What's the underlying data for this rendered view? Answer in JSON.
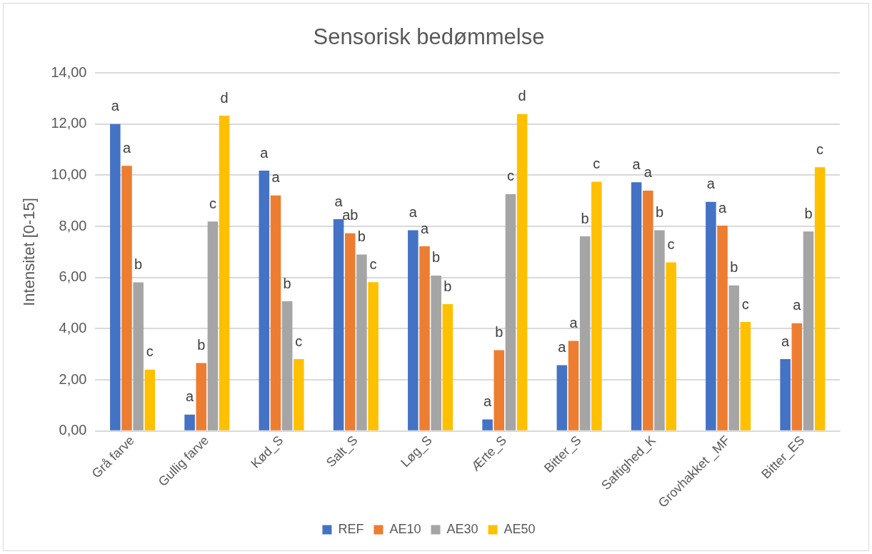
{
  "chart_data": {
    "type": "bar",
    "title": "Sensorisk bedømmelse",
    "ylabel": "Intensitet [0-15]",
    "categories": [
      "Grå farve",
      "Gullig farve",
      "Kød_S",
      "Salt_S",
      "Løg_S",
      "Ærte_S",
      "Bitter_S",
      "Saftighed_K",
      "Grovhakket _MF",
      "Bitter_ES"
    ],
    "series": [
      {
        "name": "REF",
        "color": "#4472c4",
        "values": [
          12.0,
          0.64,
          10.18,
          8.28,
          7.85,
          0.45,
          2.57,
          9.73,
          8.96,
          2.81
        ],
        "value_labels": [
          "a",
          "a",
          "a",
          "a",
          "a",
          "a",
          "a",
          "a",
          "a",
          "a"
        ]
      },
      {
        "name": "AE10",
        "color": "#ed7d31",
        "values": [
          10.37,
          2.66,
          9.21,
          7.73,
          7.22,
          3.16,
          3.52,
          9.4,
          8.03,
          4.21
        ],
        "value_labels": [
          "a",
          "b",
          "a",
          "ab",
          "a",
          "b",
          "a",
          "a",
          "a",
          "a"
        ]
      },
      {
        "name": "AE30",
        "color": "#a5a5a5",
        "values": [
          5.81,
          8.19,
          5.07,
          6.9,
          6.08,
          9.26,
          7.61,
          7.85,
          5.69,
          7.8
        ],
        "value_labels": [
          "b",
          "c",
          "b",
          "b",
          "b",
          "c",
          "b",
          "b",
          "b",
          "b"
        ]
      },
      {
        "name": "AE50",
        "color": "#ffc000",
        "values": [
          2.4,
          12.33,
          2.81,
          5.82,
          4.96,
          12.39,
          9.75,
          6.59,
          4.26,
          10.31
        ],
        "value_labels": [
          "c",
          "d",
          "c",
          "c",
          "b",
          "d",
          "c",
          "c",
          "c",
          "c"
        ]
      }
    ],
    "ylim": [
      0,
      14
    ],
    "yticks": [
      {
        "value": 0,
        "label": "0,00"
      },
      {
        "value": 2,
        "label": "2,00"
      },
      {
        "value": 4,
        "label": "4,00"
      },
      {
        "value": 6,
        "label": "6,00"
      },
      {
        "value": 8,
        "label": "8,00"
      },
      {
        "value": 10,
        "label": "10,00"
      },
      {
        "value": 12,
        "label": "12,00"
      },
      {
        "value": 14,
        "label": "14,00"
      }
    ],
    "grid": "y",
    "legend": "bottom"
  }
}
